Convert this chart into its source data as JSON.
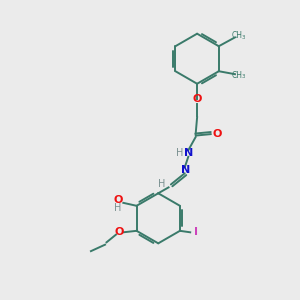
{
  "bg_color": "#ebebeb",
  "bond_color": "#3a7a6a",
  "atom_colors": {
    "O": "#ee1111",
    "N": "#1111cc",
    "H": "#7a9090",
    "I": "#cc44bb",
    "C": "#3a7a6a"
  },
  "figsize": [
    3.0,
    3.0
  ],
  "dpi": 100
}
